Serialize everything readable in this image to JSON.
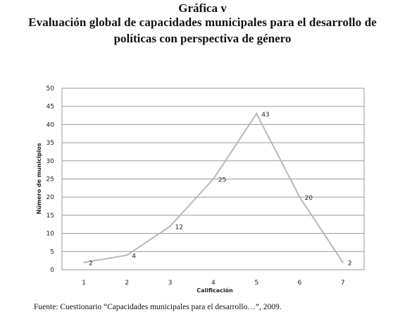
{
  "header": {
    "figure_label": "Gráfica v",
    "title_line1": "Evaluación global de capacidades municipales para el desarrollo de",
    "title_line2": "políticas con perspectiva de género"
  },
  "chart_data": {
    "type": "line",
    "title": "Evaluación global de capacidades municipales para el desarrollo de políticas con perspectiva de género",
    "xlabel": "Calificación",
    "ylabel": "Número de municipios",
    "x": [
      1,
      2,
      3,
      4,
      5,
      6,
      7
    ],
    "series": [
      {
        "values": [
          2,
          4,
          12,
          25,
          43,
          20,
          2
        ]
      }
    ],
    "ylim": [
      0,
      50
    ],
    "yticks": [
      0,
      5,
      10,
      15,
      20,
      25,
      30,
      35,
      40,
      45,
      50
    ],
    "xticks": [
      1,
      2,
      3,
      4,
      5,
      6,
      7
    ],
    "grid": true,
    "data_labels": true,
    "line_color": "#b8b8b8"
  },
  "source_note": "Fuente: Cuestionario “Capacidades municipales para el desarrollo…”, 2009."
}
